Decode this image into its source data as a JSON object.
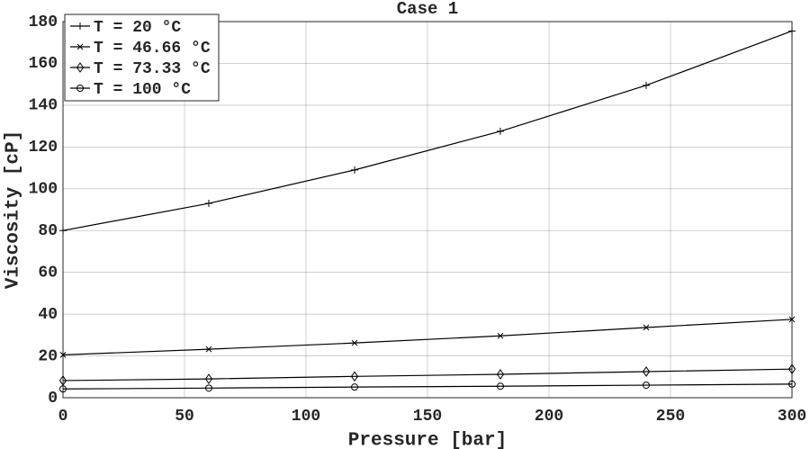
{
  "chart_data": {
    "type": "line",
    "title": "Case 1",
    "xlabel": "Pressure [bar]",
    "ylabel": "Viscosity [cP]",
    "x": [
      0,
      60,
      120,
      180,
      240,
      300
    ],
    "series": [
      {
        "name": "T = 20 °C",
        "color": "#000000",
        "marker": "plus",
        "values": [
          80,
          93,
          109,
          127.5,
          149.5,
          175.5
        ]
      },
      {
        "name": "T = 46.66 °C",
        "color": "#000000",
        "marker": "x",
        "values": [
          20.5,
          23.2,
          26.2,
          29.6,
          33.6,
          37.5
        ]
      },
      {
        "name": "T = 73.33 °C",
        "color": "#000000",
        "marker": "diamond",
        "values": [
          8.2,
          9,
          10.2,
          11.2,
          12.5,
          13.7
        ]
      },
      {
        "name": "T = 100 °C",
        "color": "#000000",
        "marker": "circle",
        "values": [
          4.2,
          4.6,
          5.1,
          5.5,
          6,
          6.5
        ]
      }
    ],
    "xlim": [
      0,
      300
    ],
    "xticks": [
      0,
      50,
      100,
      150,
      200,
      250,
      300
    ],
    "ylim": [
      0,
      180
    ],
    "yticks": [
      0,
      20,
      40,
      60,
      80,
      100,
      120,
      140,
      160,
      180
    ],
    "grid": true,
    "legend": "upper-left"
  }
}
